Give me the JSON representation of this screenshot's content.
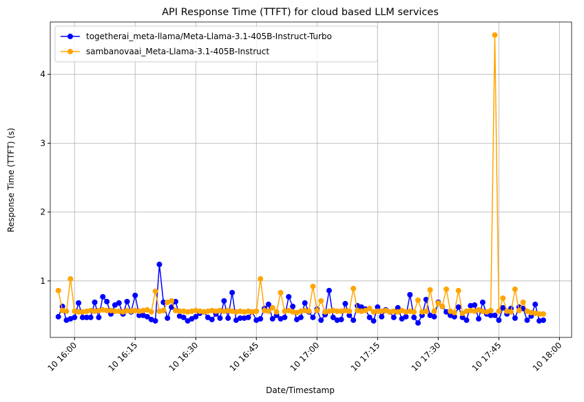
{
  "chart_data": {
    "type": "line",
    "title": "API Response Time (TTFT) for cloud based LLM services",
    "xlabel": "Date/Timestamp",
    "ylabel": "Response Time (TTFT) (s)",
    "x": [
      "10 15:56",
      "10 15:57",
      "10 15:58",
      "10 15:59",
      "10 16:00",
      "10 16:01",
      "10 16:02",
      "10 16:03",
      "10 16:04",
      "10 16:05",
      "10 16:06",
      "10 16:07",
      "10 16:08",
      "10 16:09",
      "10 16:10",
      "10 16:11",
      "10 16:12",
      "10 16:13",
      "10 16:14",
      "10 16:15",
      "10 16:16",
      "10 16:17",
      "10 16:18",
      "10 16:19",
      "10 16:20",
      "10 16:21",
      "10 16:22",
      "10 16:23",
      "10 16:24",
      "10 16:25",
      "10 16:26",
      "10 16:27",
      "10 16:28",
      "10 16:29",
      "10 16:30",
      "10 16:31",
      "10 16:32",
      "10 16:33",
      "10 16:34",
      "10 16:35",
      "10 16:36",
      "10 16:37",
      "10 16:38",
      "10 16:39",
      "10 16:40",
      "10 16:41",
      "10 16:42",
      "10 16:43",
      "10 16:44",
      "10 16:45",
      "10 16:46",
      "10 16:47",
      "10 16:48",
      "10 16:49",
      "10 16:50",
      "10 16:51",
      "10 16:52",
      "10 16:53",
      "10 16:54",
      "10 16:55",
      "10 16:56",
      "10 16:57",
      "10 16:58",
      "10 16:59",
      "10 17:00",
      "10 17:01",
      "10 17:02",
      "10 17:03",
      "10 17:04",
      "10 17:05",
      "10 17:06",
      "10 17:07",
      "10 17:08",
      "10 17:09",
      "10 17:10",
      "10 17:11",
      "10 17:12",
      "10 17:13",
      "10 17:14",
      "10 17:15",
      "10 17:16",
      "10 17:17",
      "10 17:18",
      "10 17:19",
      "10 17:20",
      "10 17:21",
      "10 17:22",
      "10 17:23",
      "10 17:24",
      "10 17:25",
      "10 17:26",
      "10 17:27",
      "10 17:28",
      "10 17:29",
      "10 17:30",
      "10 17:31",
      "10 17:32",
      "10 17:33",
      "10 17:34",
      "10 17:35",
      "10 17:36",
      "10 17:37",
      "10 17:38",
      "10 17:39",
      "10 17:40",
      "10 17:41",
      "10 17:42",
      "10 17:43",
      "10 17:44",
      "10 17:45",
      "10 17:46",
      "10 17:47",
      "10 17:48",
      "10 17:49",
      "10 17:50",
      "10 17:51",
      "10 17:52",
      "10 17:53",
      "10 17:54",
      "10 17:55",
      "10 17:56"
    ],
    "series": [
      {
        "name": "togetherai_meta-llama/Meta-Llama-3.1-405B-Instruct-Turbo",
        "color": "#0000ff",
        "values": [
          0.48,
          0.63,
          0.43,
          0.45,
          0.47,
          0.68,
          0.47,
          0.47,
          0.47,
          0.69,
          0.47,
          0.77,
          0.7,
          0.52,
          0.65,
          0.68,
          0.52,
          0.7,
          0.55,
          0.79,
          0.5,
          0.5,
          0.48,
          0.44,
          0.42,
          1.24,
          0.69,
          0.46,
          0.62,
          0.7,
          0.49,
          0.47,
          0.42,
          0.45,
          0.48,
          0.53,
          0.55,
          0.47,
          0.44,
          0.52,
          0.46,
          0.71,
          0.46,
          0.83,
          0.43,
          0.46,
          0.46,
          0.47,
          0.55,
          0.43,
          0.45,
          0.6,
          0.66,
          0.45,
          0.5,
          0.45,
          0.47,
          0.77,
          0.63,
          0.44,
          0.47,
          0.68,
          0.55,
          0.47,
          0.59,
          0.43,
          0.51,
          0.86,
          0.47,
          0.43,
          0.44,
          0.67,
          0.5,
          0.43,
          0.64,
          0.62,
          0.59,
          0.47,
          0.42,
          0.62,
          0.48,
          0.58,
          0.55,
          0.47,
          0.61,
          0.45,
          0.48,
          0.8,
          0.47,
          0.39,
          0.5,
          0.73,
          0.5,
          0.48,
          0.69,
          0.63,
          0.55,
          0.5,
          0.48,
          0.62,
          0.47,
          0.43,
          0.64,
          0.65,
          0.45,
          0.69,
          0.52,
          0.5,
          0.5,
          0.43,
          0.61,
          0.52,
          0.6,
          0.46,
          0.62,
          0.6,
          0.43,
          0.49,
          0.66,
          0.42,
          0.43
        ]
      },
      {
        "name": "sambanovaai_Meta-Llama-3.1-405B-Instruct",
        "color": "#ffa500",
        "values": [
          0.86,
          0.57,
          0.56,
          1.03,
          0.56,
          0.55,
          0.55,
          0.56,
          0.57,
          0.56,
          0.57,
          0.58,
          0.57,
          0.57,
          0.56,
          0.56,
          0.55,
          0.57,
          0.56,
          0.57,
          0.56,
          0.57,
          0.58,
          0.55,
          0.85,
          0.56,
          0.57,
          0.69,
          0.71,
          0.57,
          0.56,
          0.56,
          0.55,
          0.56,
          0.57,
          0.56,
          0.55,
          0.56,
          0.57,
          0.56,
          0.57,
          0.56,
          0.57,
          0.56,
          0.55,
          0.56,
          0.55,
          0.56,
          0.55,
          0.56,
          1.03,
          0.57,
          0.56,
          0.61,
          0.55,
          0.83,
          0.56,
          0.57,
          0.55,
          0.54,
          0.56,
          0.57,
          0.56,
          0.92,
          0.57,
          0.71,
          0.55,
          0.56,
          0.57,
          0.56,
          0.56,
          0.57,
          0.56,
          0.89,
          0.57,
          0.56,
          0.57,
          0.6,
          0.55,
          0.56,
          0.56,
          0.57,
          0.55,
          0.56,
          0.55,
          0.57,
          0.55,
          0.56,
          0.55,
          0.72,
          0.55,
          0.56,
          0.87,
          0.56,
          0.68,
          0.63,
          0.88,
          0.56,
          0.54,
          0.86,
          0.53,
          0.56,
          0.57,
          0.56,
          0.58,
          0.56,
          0.55,
          0.57,
          4.57,
          0.56,
          0.75,
          0.56,
          0.55,
          0.88,
          0.57,
          0.69,
          0.56,
          0.54,
          0.53,
          0.52,
          0.52
        ]
      }
    ],
    "xlim": [
      "10 15:54",
      "10 18:03"
    ],
    "xticks": [
      "10 16:00",
      "10 16:15",
      "10 16:30",
      "10 16:45",
      "10 17:00",
      "10 17:15",
      "10 17:30",
      "10 17:45",
      "10 18:00"
    ],
    "ylim": [
      0.18,
      4.76
    ],
    "yticks": [
      1,
      2,
      3,
      4
    ],
    "grid": true,
    "legend": "upper left"
  }
}
